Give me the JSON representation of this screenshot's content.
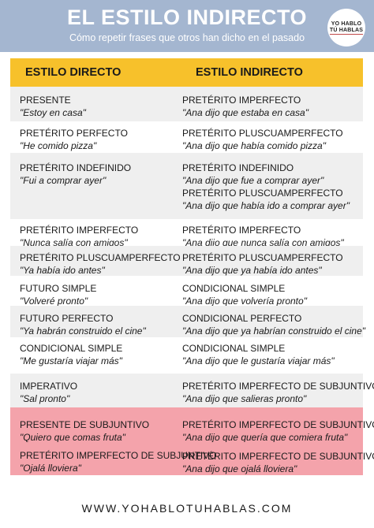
{
  "header": {
    "title": "EL ESTILO INDIRECTO",
    "subtitle": "Cómo repetir frases que otros han dicho en el pasado",
    "logo": [
      "YO HABLO",
      "TÚ HABLAS"
    ],
    "colors": {
      "header_bg": "#a4b6d0",
      "table_header_bg": "#f7c12b",
      "accent_rows": "#f4a3ab"
    }
  },
  "table": {
    "headers": [
      "ESTILO DIRECTO",
      "ESTILO INDIRECTO"
    ],
    "rows": [
      {
        "left": [
          {
            "t": "PRESENTE"
          },
          {
            "t": "\"Estoy en casa\"",
            "q": true
          }
        ],
        "right": [
          {
            "t": "PRETÉRITO IMPERFECTO"
          },
          {
            "t": "\"Ana dijo que estaba en casa\"",
            "q": true
          }
        ]
      },
      {
        "left": [
          {
            "t": "PRETÉRITO PERFECTO"
          },
          {
            "t": "\"He comido pizza\"",
            "q": true
          }
        ],
        "right": [
          {
            "t": "PRETÉRITO PLUSCUAMPERFECTO"
          },
          {
            "t": "\"Ana dijo que había comido pizza\"",
            "q": true
          }
        ]
      },
      {
        "left": [
          {
            "t": "PRETÉRITO INDEFINIDO"
          },
          {
            "t": "\"Fui a comprar ayer\"",
            "q": true
          }
        ],
        "right": [
          {
            "t": "PRETÉRITO INDEFINIDO"
          },
          {
            "t": "\"Ana dijo que fue a comprar ayer\"",
            "q": true
          },
          {
            "t": "PRETÉRITO PLUSCUAMPERFECTO"
          },
          {
            "t": "\"Ana dijo que había ido a comprar ayer\"",
            "q": true
          }
        ]
      },
      {
        "left": [
          {
            "t": "PRETÉRITO IMPERFECTO"
          },
          {
            "t": "\"Nunca salía con amigos\"",
            "q": true
          }
        ],
        "right": [
          {
            "t": "PRETÉRITO IMPERFECTO"
          },
          {
            "t": "\"Ana dijo que nunca salía con amigos\"",
            "q": true
          }
        ]
      },
      {
        "left": [
          {
            "t": "PRETÉRITO PLUSCUAMPERFECTO"
          },
          {
            "t": "\"Ya había ido antes\"",
            "q": true
          }
        ],
        "right": [
          {
            "t": "PRETÉRITO PLUSCUAMPERFECTO"
          },
          {
            "t": "\"Ana dijo que ya había ido antes\"",
            "q": true
          }
        ]
      },
      {
        "left": [
          {
            "t": "FUTURO SIMPLE"
          },
          {
            "t": "\"Volveré pronto\"",
            "q": true
          }
        ],
        "right": [
          {
            "t": "CONDICIONAL SIMPLE"
          },
          {
            "t": "\"Ana dijo que volvería pronto\"",
            "q": true
          }
        ]
      },
      {
        "left": [
          {
            "t": "FUTURO PERFECTO"
          },
          {
            "t": "\"Ya habrán construido el cine\"",
            "q": true
          }
        ],
        "right": [
          {
            "t": "CONDICIONAL PERFECTO"
          },
          {
            "t": "\"Ana dijo que ya habrían construido el cine\"",
            "q": true
          }
        ]
      },
      {
        "left": [
          {
            "t": "CONDICIONAL SIMPLE"
          },
          {
            "t": "\"Me gustaría viajar más\"",
            "q": true
          }
        ],
        "right": [
          {
            "t": "CONDICIONAL SIMPLE"
          },
          {
            "t": "\"Ana dijo que le gustaría viajar más\"",
            "q": true
          }
        ]
      },
      {
        "left": [
          {
            "t": "IMPERATIVO"
          },
          {
            "t": "\"Sal pronto\"",
            "q": true
          }
        ],
        "right": [
          {
            "t": "PRETÉRITO IMPERFECTO DE SUBJUNTIVO"
          },
          {
            "t": "\"Ana dijo que salieras pronto\"",
            "q": true
          }
        ]
      },
      {
        "left": [
          {
            "t": "PRESENTE DE SUBJUNTIVO"
          },
          {
            "t": "\"Quiero que comas fruta\"",
            "q": true
          }
        ],
        "right": [
          {
            "t": "PRETÉRITO IMPERFECTO DE SUBJUNTIVO"
          },
          {
            "t": "\"Ana dijo que quería que comiera fruta\"",
            "q": true
          }
        ]
      },
      {
        "left": [
          {
            "t": "PRETÉRITO IMPERFECTO DE SUBJUNTIVO"
          },
          {
            "t": "\"Ojalá lloviera\"",
            "q": true
          }
        ],
        "right": [
          {
            "t": "PRETÉRITO IMPERFECTO DE SUBJUNTIVO"
          },
          {
            "t": "\"Ana dijo que ojalá lloviera\"",
            "q": true
          }
        ]
      }
    ]
  },
  "footer": {
    "url": "WWW.YOHABLOTUHABLAS.COM"
  }
}
